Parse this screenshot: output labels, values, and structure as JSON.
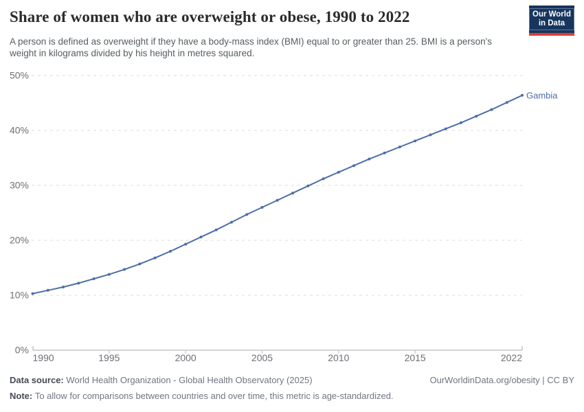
{
  "header": {
    "title": "Share of women who are overweight or obese, 1990 to 2022",
    "subtitle": "A person is defined as overweight if they have a body-mass index (BMI) equal to or greater than 25. BMI is a person's weight in kilograms divided by his height in metres squared.",
    "logo": {
      "line1": "Our World",
      "line2": "in Data"
    }
  },
  "chart_data": {
    "type": "line",
    "title": "Share of women who are overweight or obese, 1990 to 2022",
    "xlabel": "",
    "ylabel": "",
    "ylim": [
      0,
      50
    ],
    "xlim": [
      1990,
      2022
    ],
    "grid": "horizontal dashed",
    "legend_position": "end-of-line label",
    "x": [
      1990,
      1991,
      1992,
      1993,
      1994,
      1995,
      1996,
      1997,
      1998,
      1999,
      2000,
      2001,
      2002,
      2003,
      2004,
      2005,
      2006,
      2007,
      2008,
      2009,
      2010,
      2011,
      2012,
      2013,
      2014,
      2015,
      2016,
      2017,
      2018,
      2019,
      2020,
      2021,
      2022
    ],
    "series": [
      {
        "name": "Gambia",
        "color": "#4c6da9",
        "values": [
          10.3,
          10.9,
          11.5,
          12.2,
          13.0,
          13.8,
          14.7,
          15.7,
          16.8,
          18.0,
          19.3,
          20.6,
          21.9,
          23.3,
          24.7,
          26.0,
          27.3,
          28.6,
          29.9,
          31.2,
          32.4,
          33.6,
          34.8,
          35.9,
          37.0,
          38.1,
          39.2,
          40.3,
          41.4,
          42.6,
          43.8,
          45.1,
          46.4
        ]
      }
    ],
    "y_ticks": [
      {
        "value": 0,
        "label": "0%"
      },
      {
        "value": 10,
        "label": "10%"
      },
      {
        "value": 20,
        "label": "20%"
      },
      {
        "value": 30,
        "label": "30%"
      },
      {
        "value": 40,
        "label": "40%"
      },
      {
        "value": 50,
        "label": "50%"
      }
    ],
    "x_ticks": [
      1990,
      1995,
      2000,
      2005,
      2010,
      2015,
      2022
    ]
  },
  "footer": {
    "data_source_label": "Data source:",
    "data_source": "World Health Organization - Global Health Observatory (2025)",
    "note_label": "Note:",
    "note": "To allow for comparisons between countries and over time, this metric is age-standardized.",
    "credit": "OurWorldinData.org/obesity | CC BY"
  }
}
